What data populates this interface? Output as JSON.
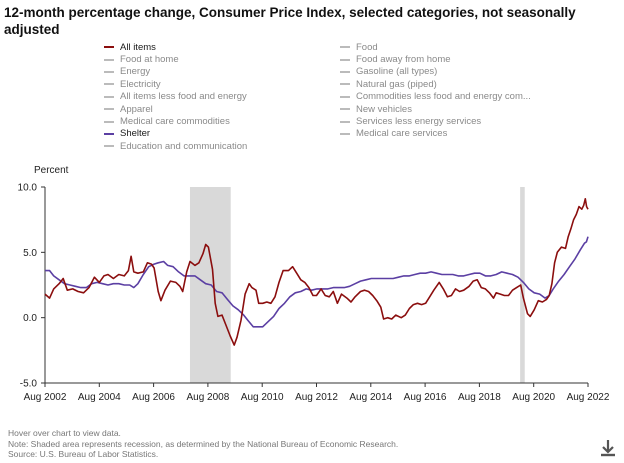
{
  "title": "12-month percentage change, Consumer Price Index, selected categories, not seasonally adjusted",
  "legend": {
    "left": [
      {
        "label": "All items",
        "active": true,
        "color": "#8b0e0e"
      },
      {
        "label": "Food at home",
        "active": false,
        "color": "#bbbbbb"
      },
      {
        "label": "Energy",
        "active": false,
        "color": "#bbbbbb"
      },
      {
        "label": "Electricity",
        "active": false,
        "color": "#bbbbbb"
      },
      {
        "label": "All items less food and energy",
        "active": false,
        "color": "#bbbbbb"
      },
      {
        "label": "Apparel",
        "active": false,
        "color": "#bbbbbb"
      },
      {
        "label": "Medical care commodities",
        "active": false,
        "color": "#bbbbbb"
      },
      {
        "label": "Shelter",
        "active": true,
        "color": "#5b3fa3"
      },
      {
        "label": "Education and communication",
        "active": false,
        "color": "#bbbbbb"
      }
    ],
    "right": [
      {
        "label": "Food",
        "active": false,
        "color": "#bbbbbb"
      },
      {
        "label": "Food away from home",
        "active": false,
        "color": "#bbbbbb"
      },
      {
        "label": "Gasoline (all types)",
        "active": false,
        "color": "#bbbbbb"
      },
      {
        "label": "Natural gas (piped)",
        "active": false,
        "color": "#bbbbbb"
      },
      {
        "label": "Commodities less food and energy com...",
        "active": false,
        "color": "#bbbbbb"
      },
      {
        "label": "New vehicles",
        "active": false,
        "color": "#bbbbbb"
      },
      {
        "label": "Services less energy services",
        "active": false,
        "color": "#bbbbbb"
      },
      {
        "label": "Medical care services",
        "active": false,
        "color": "#bbbbbb"
      }
    ]
  },
  "footer": {
    "hint": "Hover over chart to view data.",
    "note": "Note: Shaded area represents recession, as determined by the National Bureau of Economic Research.",
    "source": "Source: U.S. Bureau of Labor Statistics."
  },
  "icons": {
    "download": "download-icon"
  },
  "chart_data": {
    "type": "line",
    "ylabel": "Percent",
    "xlabel": "",
    "ylim": [
      -5.0,
      10.0
    ],
    "yticks": [
      "10.0",
      "5.0",
      "0.0",
      "-5.0"
    ],
    "ytick_values": [
      10,
      5,
      0,
      -5
    ],
    "xlim": [
      2002.58,
      2022.58
    ],
    "xticks": [
      "Aug 2002",
      "Aug 2004",
      "Aug 2006",
      "Aug 2008",
      "Aug 2010",
      "Aug 2012",
      "Aug 2014",
      "Aug 2016",
      "Aug 2018",
      "Aug 2020",
      "Aug 2022"
    ],
    "xtick_values": [
      2002.58,
      2004.58,
      2006.58,
      2008.58,
      2010.58,
      2012.58,
      2014.58,
      2016.58,
      2018.58,
      2020.58,
      2022.58
    ],
    "grid": false,
    "recessions": [
      [
        2007.92,
        2009.42
      ],
      [
        2020.08,
        2020.25
      ]
    ],
    "series": [
      {
        "name": "All items",
        "color": "#8b0e0e",
        "points": [
          [
            2002.58,
            1.8
          ],
          [
            2002.75,
            1.5
          ],
          [
            2002.9,
            2.2
          ],
          [
            2003.1,
            2.6
          ],
          [
            2003.25,
            3.0
          ],
          [
            2003.4,
            2.1
          ],
          [
            2003.6,
            2.2
          ],
          [
            2003.8,
            2.0
          ],
          [
            2004.0,
            1.9
          ],
          [
            2004.2,
            2.3
          ],
          [
            2004.4,
            3.1
          ],
          [
            2004.58,
            2.7
          ],
          [
            2004.75,
            3.2
          ],
          [
            2004.9,
            3.3
          ],
          [
            2005.1,
            3.0
          ],
          [
            2005.3,
            3.3
          ],
          [
            2005.5,
            3.2
          ],
          [
            2005.65,
            3.6
          ],
          [
            2005.75,
            4.7
          ],
          [
            2005.85,
            3.5
          ],
          [
            2006.0,
            3.4
          ],
          [
            2006.2,
            3.5
          ],
          [
            2006.35,
            4.2
          ],
          [
            2006.5,
            4.1
          ],
          [
            2006.6,
            3.8
          ],
          [
            2006.75,
            2.0
          ],
          [
            2006.85,
            1.3
          ],
          [
            2007.0,
            2.1
          ],
          [
            2007.2,
            2.8
          ],
          [
            2007.4,
            2.7
          ],
          [
            2007.55,
            2.4
          ],
          [
            2007.65,
            2.0
          ],
          [
            2007.8,
            3.5
          ],
          [
            2007.92,
            4.3
          ],
          [
            2008.1,
            4.0
          ],
          [
            2008.25,
            4.2
          ],
          [
            2008.4,
            4.9
          ],
          [
            2008.5,
            5.6
          ],
          [
            2008.6,
            5.4
          ],
          [
            2008.75,
            3.7
          ],
          [
            2008.85,
            1.1
          ],
          [
            2008.95,
            0.1
          ],
          [
            2009.1,
            0.2
          ],
          [
            2009.25,
            -0.6
          ],
          [
            2009.4,
            -1.4
          ],
          [
            2009.55,
            -2.1
          ],
          [
            2009.65,
            -1.5
          ],
          [
            2009.8,
            -0.2
          ],
          [
            2009.95,
            1.8
          ],
          [
            2010.1,
            2.6
          ],
          [
            2010.2,
            2.3
          ],
          [
            2010.35,
            2.1
          ],
          [
            2010.45,
            1.1
          ],
          [
            2010.6,
            1.1
          ],
          [
            2010.75,
            1.2
          ],
          [
            2010.9,
            1.1
          ],
          [
            2011.05,
            1.6
          ],
          [
            2011.2,
            2.7
          ],
          [
            2011.35,
            3.6
          ],
          [
            2011.55,
            3.6
          ],
          [
            2011.7,
            3.9
          ],
          [
            2011.85,
            3.4
          ],
          [
            2012.0,
            2.9
          ],
          [
            2012.15,
            2.7
          ],
          [
            2012.3,
            2.3
          ],
          [
            2012.45,
            1.7
          ],
          [
            2012.58,
            1.7
          ],
          [
            2012.75,
            2.2
          ],
          [
            2012.9,
            1.7
          ],
          [
            2013.05,
            1.6
          ],
          [
            2013.2,
            2.0
          ],
          [
            2013.35,
            1.1
          ],
          [
            2013.5,
            1.8
          ],
          [
            2013.7,
            1.5
          ],
          [
            2013.85,
            1.2
          ],
          [
            2014.0,
            1.6
          ],
          [
            2014.2,
            2.0
          ],
          [
            2014.35,
            2.1
          ],
          [
            2014.5,
            2.0
          ],
          [
            2014.65,
            1.7
          ],
          [
            2014.8,
            1.3
          ],
          [
            2014.95,
            0.8
          ],
          [
            2015.05,
            -0.1
          ],
          [
            2015.2,
            0.0
          ],
          [
            2015.35,
            -0.1
          ],
          [
            2015.5,
            0.2
          ],
          [
            2015.7,
            0.0
          ],
          [
            2015.85,
            0.2
          ],
          [
            2016.0,
            0.7
          ],
          [
            2016.15,
            1.0
          ],
          [
            2016.3,
            1.1
          ],
          [
            2016.45,
            1.0
          ],
          [
            2016.6,
            1.1
          ],
          [
            2016.75,
            1.6
          ],
          [
            2016.9,
            2.1
          ],
          [
            2017.1,
            2.7
          ],
          [
            2017.25,
            2.2
          ],
          [
            2017.4,
            1.6
          ],
          [
            2017.55,
            1.7
          ],
          [
            2017.7,
            2.2
          ],
          [
            2017.85,
            2.0
          ],
          [
            2018.0,
            2.1
          ],
          [
            2018.2,
            2.4
          ],
          [
            2018.35,
            2.8
          ],
          [
            2018.5,
            2.9
          ],
          [
            2018.65,
            2.3
          ],
          [
            2018.8,
            2.2
          ],
          [
            2018.95,
            1.9
          ],
          [
            2019.1,
            1.5
          ],
          [
            2019.2,
            1.9
          ],
          [
            2019.35,
            1.8
          ],
          [
            2019.5,
            1.7
          ],
          [
            2019.65,
            1.7
          ],
          [
            2019.8,
            2.1
          ],
          [
            2019.95,
            2.3
          ],
          [
            2020.1,
            2.5
          ],
          [
            2020.2,
            1.5
          ],
          [
            2020.35,
            0.3
          ],
          [
            2020.45,
            0.1
          ],
          [
            2020.6,
            0.6
          ],
          [
            2020.75,
            1.3
          ],
          [
            2020.9,
            1.2
          ],
          [
            2021.05,
            1.4
          ],
          [
            2021.15,
            1.7
          ],
          [
            2021.25,
            2.6
          ],
          [
            2021.35,
            4.2
          ],
          [
            2021.45,
            5.0
          ],
          [
            2021.6,
            5.4
          ],
          [
            2021.75,
            5.3
          ],
          [
            2021.85,
            6.2
          ],
          [
            2021.95,
            6.8
          ],
          [
            2022.05,
            7.5
          ],
          [
            2022.15,
            7.9
          ],
          [
            2022.25,
            8.5
          ],
          [
            2022.35,
            8.3
          ],
          [
            2022.42,
            8.6
          ],
          [
            2022.48,
            9.1
          ],
          [
            2022.53,
            8.5
          ],
          [
            2022.58,
            8.3
          ]
        ]
      },
      {
        "name": "Shelter",
        "color": "#5b3fa3",
        "points": [
          [
            2002.58,
            3.6
          ],
          [
            2002.75,
            3.6
          ],
          [
            2002.9,
            3.2
          ],
          [
            2003.1,
            2.9
          ],
          [
            2003.3,
            2.6
          ],
          [
            2003.5,
            2.5
          ],
          [
            2003.7,
            2.4
          ],
          [
            2003.9,
            2.3
          ],
          [
            2004.1,
            2.3
          ],
          [
            2004.3,
            2.6
          ],
          [
            2004.5,
            2.7
          ],
          [
            2004.7,
            2.6
          ],
          [
            2004.9,
            2.5
          ],
          [
            2005.1,
            2.6
          ],
          [
            2005.3,
            2.6
          ],
          [
            2005.5,
            2.5
          ],
          [
            2005.7,
            2.5
          ],
          [
            2005.85,
            2.3
          ],
          [
            2006.0,
            2.6
          ],
          [
            2006.2,
            3.3
          ],
          [
            2006.4,
            3.9
          ],
          [
            2006.6,
            4.1
          ],
          [
            2006.75,
            4.2
          ],
          [
            2006.95,
            4.3
          ],
          [
            2007.1,
            4.0
          ],
          [
            2007.3,
            3.9
          ],
          [
            2007.5,
            3.5
          ],
          [
            2007.7,
            3.2
          ],
          [
            2007.9,
            3.2
          ],
          [
            2008.1,
            3.2
          ],
          [
            2008.3,
            2.9
          ],
          [
            2008.5,
            2.6
          ],
          [
            2008.7,
            2.5
          ],
          [
            2008.9,
            2.0
          ],
          [
            2009.1,
            1.9
          ],
          [
            2009.3,
            1.4
          ],
          [
            2009.5,
            0.9
          ],
          [
            2009.7,
            0.6
          ],
          [
            2009.9,
            0.2
          ],
          [
            2010.05,
            -0.2
          ],
          [
            2010.25,
            -0.7
          ],
          [
            2010.45,
            -0.7
          ],
          [
            2010.6,
            -0.7
          ],
          [
            2010.8,
            -0.3
          ],
          [
            2011.0,
            0.1
          ],
          [
            2011.2,
            0.7
          ],
          [
            2011.4,
            1.1
          ],
          [
            2011.6,
            1.6
          ],
          [
            2011.8,
            1.9
          ],
          [
            2012.0,
            2.0
          ],
          [
            2012.2,
            2.2
          ],
          [
            2012.4,
            2.1
          ],
          [
            2012.6,
            2.2
          ],
          [
            2012.8,
            2.2
          ],
          [
            2013.0,
            2.2
          ],
          [
            2013.2,
            2.3
          ],
          [
            2013.4,
            2.3
          ],
          [
            2013.6,
            2.3
          ],
          [
            2013.8,
            2.4
          ],
          [
            2014.0,
            2.6
          ],
          [
            2014.2,
            2.8
          ],
          [
            2014.4,
            2.9
          ],
          [
            2014.6,
            3.0
          ],
          [
            2014.8,
            3.0
          ],
          [
            2015.0,
            3.0
          ],
          [
            2015.2,
            3.0
          ],
          [
            2015.4,
            3.0
          ],
          [
            2015.6,
            3.1
          ],
          [
            2015.8,
            3.2
          ],
          [
            2016.0,
            3.2
          ],
          [
            2016.2,
            3.3
          ],
          [
            2016.4,
            3.4
          ],
          [
            2016.6,
            3.4
          ],
          [
            2016.8,
            3.5
          ],
          [
            2017.0,
            3.4
          ],
          [
            2017.2,
            3.3
          ],
          [
            2017.4,
            3.3
          ],
          [
            2017.6,
            3.3
          ],
          [
            2017.8,
            3.2
          ],
          [
            2018.0,
            3.2
          ],
          [
            2018.2,
            3.3
          ],
          [
            2018.4,
            3.4
          ],
          [
            2018.6,
            3.4
          ],
          [
            2018.8,
            3.2
          ],
          [
            2019.0,
            3.2
          ],
          [
            2019.2,
            3.3
          ],
          [
            2019.4,
            3.5
          ],
          [
            2019.6,
            3.4
          ],
          [
            2019.8,
            3.3
          ],
          [
            2020.0,
            3.1
          ],
          [
            2020.2,
            2.7
          ],
          [
            2020.4,
            2.2
          ],
          [
            2020.6,
            1.9
          ],
          [
            2020.8,
            1.8
          ],
          [
            2021.0,
            1.5
          ],
          [
            2021.15,
            1.7
          ],
          [
            2021.3,
            2.2
          ],
          [
            2021.5,
            2.8
          ],
          [
            2021.7,
            3.3
          ],
          [
            2021.9,
            3.9
          ],
          [
            2022.1,
            4.5
          ],
          [
            2022.3,
            5.2
          ],
          [
            2022.45,
            5.7
          ],
          [
            2022.52,
            5.8
          ],
          [
            2022.58,
            6.2
          ]
        ]
      }
    ]
  }
}
